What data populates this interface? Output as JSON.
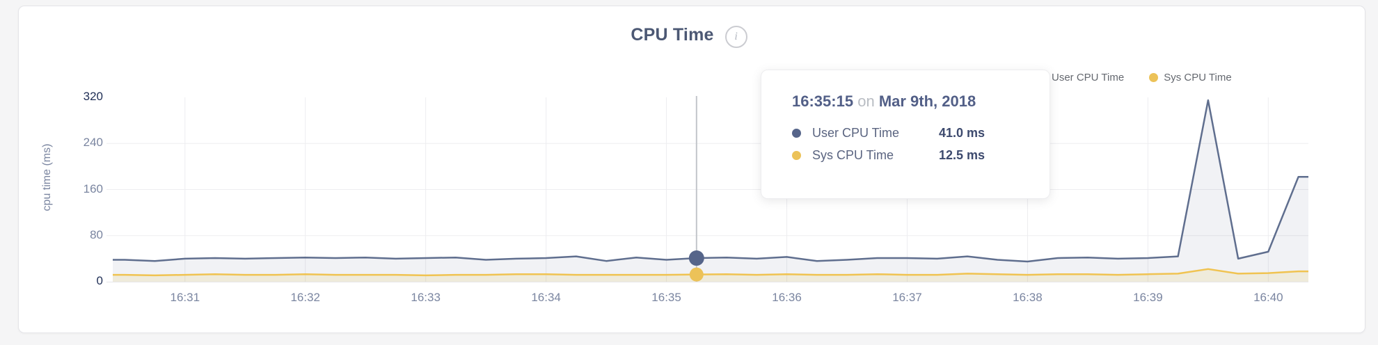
{
  "page": {
    "title": "CPU Time",
    "info_icon_glyph": "i"
  },
  "legend": [
    {
      "label": "User CPU Time",
      "color": "#56658a"
    },
    {
      "label": "Sys CPU Time",
      "color": "#ecc258"
    }
  ],
  "y_axis": {
    "title": "cpu time (ms)"
  },
  "tooltip": {
    "time": "16:35:15",
    "on": "on",
    "date": "Mar 9th, 2018",
    "rows": [
      {
        "label": "User CPU Time",
        "value": "41.0 ms",
        "color": "#56658a"
      },
      {
        "label": "Sys CPU Time",
        "value": "12.5 ms",
        "color": "#ecc258"
      }
    ]
  },
  "chart_data": {
    "type": "area",
    "title": "CPU Time",
    "xlabel": "",
    "ylabel": "cpu time (ms)",
    "ylim": [
      0,
      320
    ],
    "yticks": [
      "0",
      "80",
      "160",
      "240",
      "320"
    ],
    "yticks_emphasized": [
      "0",
      "320"
    ],
    "xticks": [
      "16:31",
      "16:32",
      "16:33",
      "16:34",
      "16:35",
      "16:36",
      "16:37",
      "16:38",
      "16:39",
      "16:40"
    ],
    "grid": true,
    "legend_position": "top-right",
    "x": [
      "16:30:30",
      "16:30:45",
      "16:31:00",
      "16:31:15",
      "16:31:30",
      "16:31:45",
      "16:32:00",
      "16:32:15",
      "16:32:30",
      "16:32:45",
      "16:33:00",
      "16:33:15",
      "16:33:30",
      "16:33:45",
      "16:34:00",
      "16:34:15",
      "16:34:30",
      "16:34:45",
      "16:35:00",
      "16:35:15",
      "16:35:30",
      "16:35:45",
      "16:36:00",
      "16:36:15",
      "16:36:30",
      "16:36:45",
      "16:37:00",
      "16:37:15",
      "16:37:30",
      "16:37:45",
      "16:38:00",
      "16:38:15",
      "16:38:30",
      "16:38:45",
      "16:39:00",
      "16:39:15",
      "16:39:30",
      "16:39:45",
      "16:40:00",
      "16:40:15"
    ],
    "series": [
      {
        "name": "User CPU Time",
        "color": "#5f6e8e",
        "fill": "rgba(101,114,146,0.09)",
        "values": [
          38,
          36,
          40,
          41,
          40,
          41,
          42,
          41,
          42,
          40,
          41,
          42,
          38,
          40,
          41,
          44,
          36,
          42,
          38,
          41,
          42,
          40,
          43,
          36,
          38,
          41,
          41,
          40,
          44,
          38,
          35,
          41,
          42,
          40,
          41,
          44,
          315,
          40,
          52,
          182
        ]
      },
      {
        "name": "Sys CPU Time",
        "color": "#f0c351",
        "fill": "rgba(233,196,90,0.16)",
        "values": [
          12,
          11,
          12,
          13,
          12,
          12,
          13,
          12,
          12,
          12,
          11,
          12,
          12,
          13,
          13,
          12,
          12,
          12,
          12,
          12.5,
          13,
          12,
          13,
          12,
          12,
          13,
          12,
          12,
          14,
          13,
          12,
          13,
          13,
          12,
          13,
          14,
          22,
          14,
          15,
          18
        ]
      }
    ],
    "highlight_index": 19,
    "highlight": {
      "time": "16:35:15",
      "date": "Mar 9th, 2018",
      "user_ms": 41.0,
      "sys_ms": 12.5
    },
    "crosshair_color": "#c2c5ca",
    "gridline_color": "#ededf0"
  }
}
